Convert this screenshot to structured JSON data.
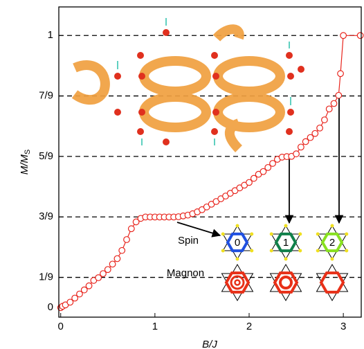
{
  "chart_data": {
    "type": "line",
    "x_label": "B/J",
    "y_label": {
      "main": "M/M",
      "sub": "S"
    },
    "color": "#e8241c",
    "marker": "open-circle",
    "grid": true,
    "xlim": [
      -0.02,
      3.19
    ],
    "ylim": [
      -0.035,
      1.105
    ],
    "xticks": [
      0,
      1,
      2,
      3
    ],
    "yticks": [
      0,
      {
        "value": 0.1111,
        "label": "1/9"
      },
      {
        "value": 0.3333,
        "label": "3/9"
      },
      {
        "value": 0.5556,
        "label": "5/9"
      },
      {
        "value": 0.7778,
        "label": "7/9"
      },
      1
    ],
    "x": [
      0.0,
      0.02,
      0.05,
      0.1,
      0.15,
      0.2,
      0.25,
      0.3,
      0.35,
      0.4,
      0.45,
      0.5,
      0.55,
      0.6,
      0.65,
      0.7,
      0.75,
      0.8,
      0.85,
      0.9,
      0.95,
      1.0,
      1.05,
      1.1,
      1.15,
      1.2,
      1.25,
      1.3,
      1.35,
      1.4,
      1.45,
      1.5,
      1.55,
      1.6,
      1.65,
      1.7,
      1.75,
      1.8,
      1.85,
      1.9,
      1.95,
      2.0,
      2.05,
      2.1,
      2.15,
      2.2,
      2.25,
      2.3,
      2.35,
      2.4,
      2.45,
      2.5,
      2.55,
      2.6,
      2.65,
      2.7,
      2.75,
      2.8,
      2.85,
      2.9,
      2.95,
      2.97,
      3.0,
      3.18
    ],
    "values": [
      0.0,
      0.005,
      0.01,
      0.02,
      0.035,
      0.05,
      0.065,
      0.08,
      0.1,
      0.11,
      0.125,
      0.14,
      0.16,
      0.18,
      0.21,
      0.25,
      0.29,
      0.315,
      0.328,
      0.333,
      0.333,
      0.333,
      0.333,
      0.333,
      0.333,
      0.333,
      0.334,
      0.337,
      0.34,
      0.345,
      0.352,
      0.36,
      0.37,
      0.38,
      0.39,
      0.4,
      0.41,
      0.42,
      0.43,
      0.44,
      0.45,
      0.46,
      0.475,
      0.49,
      0.5,
      0.515,
      0.53,
      0.545,
      0.553,
      0.555,
      0.556,
      0.565,
      0.59,
      0.61,
      0.625,
      0.64,
      0.66,
      0.69,
      0.73,
      0.75,
      0.78,
      0.86,
      1.0,
      1.0
    ],
    "annotations": {
      "spin": "Spin",
      "magnon": "Magnon",
      "spin_numbers": [
        "0",
        "1",
        "2"
      ]
    }
  }
}
